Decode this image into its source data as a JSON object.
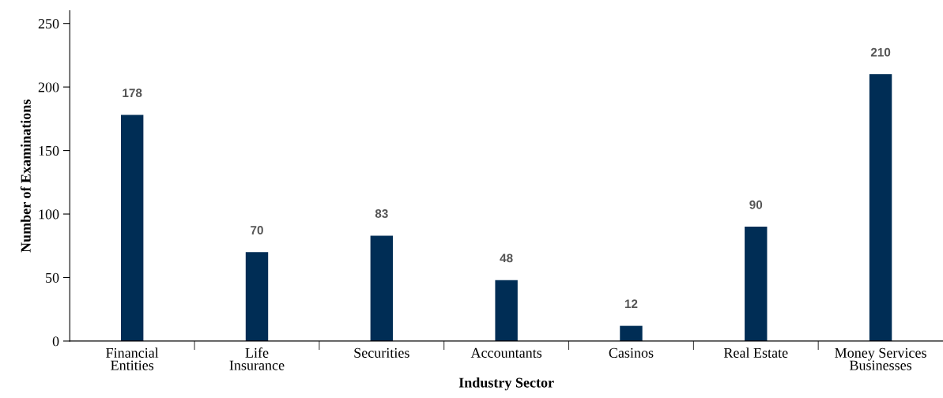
{
  "chart_data": {
    "type": "bar",
    "xlabel": "Industry Sector",
    "ylabel": "Number of Examinations",
    "categories": [
      "Financial\nEntities",
      "Life\nInsurance",
      "Securities",
      "Accountants",
      "Casinos",
      "Real Estate",
      "Money Services\nBusinesses"
    ],
    "values": [
      178,
      70,
      83,
      48,
      12,
      90,
      210
    ],
    "color": "#002d55",
    "ylim": [
      0,
      260
    ],
    "yticks": [
      0,
      50,
      100,
      150,
      200,
      250
    ],
    "data_labels": true,
    "grid": false,
    "legend": false
  }
}
